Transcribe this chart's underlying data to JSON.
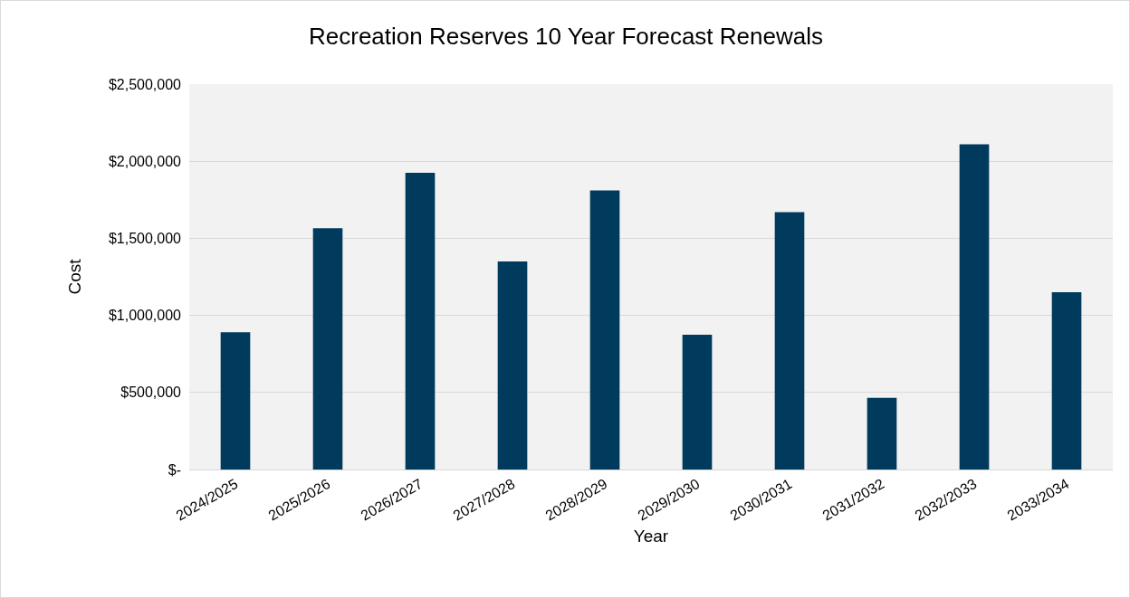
{
  "chart_data": {
    "type": "bar",
    "title": "Recreation Reserves 10 Year Forecast Renewals",
    "xlabel": "Year",
    "ylabel": "Cost",
    "categories": [
      "2024/2025",
      "2025/2026",
      "2026/2027",
      "2027/2028",
      "2028/2029",
      "2029/2030",
      "2030/2031",
      "2031/2032",
      "2032/2033",
      "2033/2034"
    ],
    "values": [
      890000,
      1565000,
      1925000,
      1350000,
      1810000,
      875000,
      1670000,
      465000,
      2110000,
      1150000
    ],
    "color": "#003a5c",
    "ylim": [
      0,
      2500000
    ],
    "yticks": [
      {
        "value": 0,
        "label": "$-"
      },
      {
        "value": 500000,
        "label": "$500,000"
      },
      {
        "value": 1000000,
        "label": "$1,000,000"
      },
      {
        "value": 1500000,
        "label": "$1,500,000"
      },
      {
        "value": 2000000,
        "label": "$2,000,000"
      },
      {
        "value": 2500000,
        "label": "$2,500,000"
      }
    ],
    "grid": "y",
    "legend": false
  }
}
